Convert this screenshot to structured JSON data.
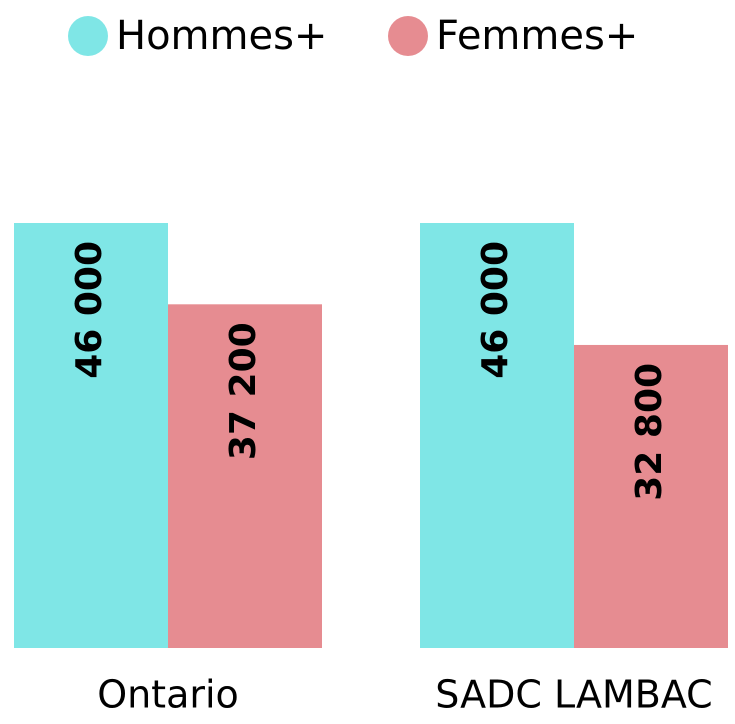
{
  "chart_data": {
    "type": "bar",
    "categories": [
      "Ontario",
      "SADC LAMBAC"
    ],
    "series": [
      {
        "name": "Hommes+",
        "color": "#7fe6e6",
        "values": [
          46000,
          46000
        ],
        "value_labels": [
          "46 000",
          "46 000"
        ]
      },
      {
        "name": "Femmes+",
        "color": "#e68c91",
        "values": [
          37200,
          32800
        ],
        "value_labels": [
          "37 200",
          "32 800"
        ]
      }
    ],
    "legend": "top"
  }
}
